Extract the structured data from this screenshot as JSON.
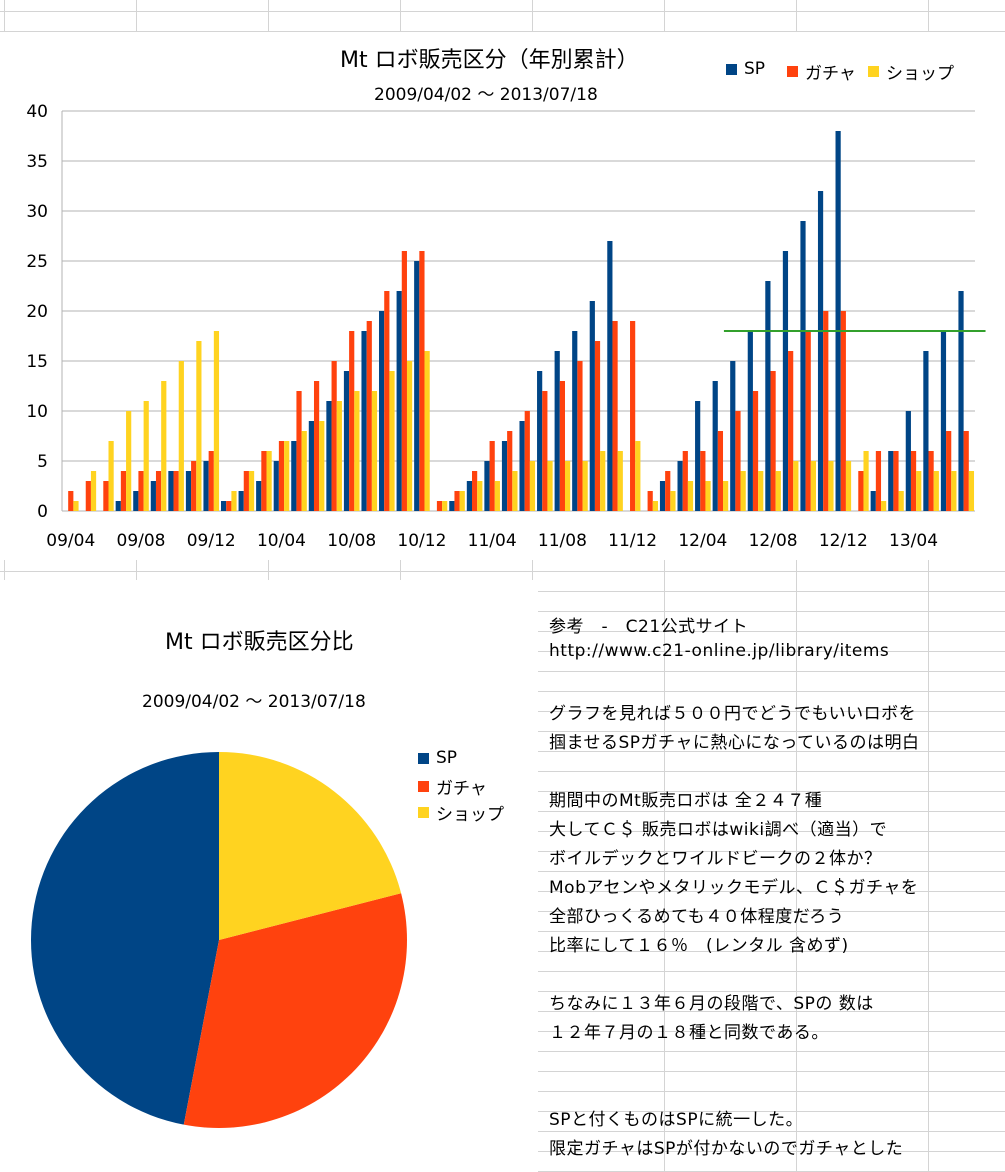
{
  "bar_chart": {
    "title": "Mt ロボ販売区分（年別累計）",
    "subtitle": "2009/04/02 〜 2013/07/18",
    "legend": [
      {
        "label": "SP",
        "color": "#004586"
      },
      {
        "label": "ガチャ",
        "color": "#ff420e"
      },
      {
        "label": "ショップ",
        "color": "#ffd320"
      }
    ]
  },
  "pie_chart": {
    "title": "Mt ロボ販売区分比",
    "subtitle": "2009/04/02 〜 2013/07/18",
    "legend": [
      {
        "label": "SP",
        "color": "#004586"
      },
      {
        "label": "ガチャ",
        "color": "#ff420e"
      },
      {
        "label": "ショップ",
        "color": "#ffd320"
      }
    ]
  },
  "notes": [
    "参考　-　C21公式サイト",
    "http://www.c21-online.jp/library/items",
    "",
    "グラフを見れば５００円でどうでもいいロボを",
    "掴ませるSPガチャに熱心になっているのは明白",
    "",
    "期間中のMt販売ロボは 全２４７種",
    "大してＣ＄ 販売ロボはwiki調べ（適当）で",
    "ボイルデックとワイルドビークの２体か？",
    "Mobアセンやメタリックモデル、Ｃ＄ガチャを",
    "全部ひっくるめても４０体程度だろう",
    "比率にして１６％　(レンタル 含めず)",
    "",
    "ちなみに１３年６月の段階で、SPの 数は",
    "１２年７月の１８種と同数である。",
    "",
    "",
    "SPと付くものはSPに統一した。",
    "限定ガチャはSPが付かないのでガチャとした"
  ],
  "chart_data": [
    {
      "type": "bar",
      "title": "Mt ロボ販売区分（年別累計）",
      "subtitle": "2009/04/02 〜 2013/07/18",
      "xlabel": "",
      "ylabel": "",
      "ylim": [
        0,
        40
      ],
      "yticks": [
        0,
        5,
        10,
        15,
        20,
        25,
        30,
        35,
        40
      ],
      "grid": true,
      "legend_position": "top-right",
      "x_tick_labels": [
        "09/04",
        "09/08",
        "09/12",
        "10/04",
        "10/08",
        "10/12",
        "11/04",
        "11/08",
        "11/12",
        "12/04",
        "12/08",
        "12/12",
        "13/04"
      ],
      "categories": [
        "09/04",
        "09/05",
        "09/06",
        "09/07",
        "09/08",
        "09/09",
        "09/10",
        "09/11",
        "09/12",
        "10/01",
        "10/02",
        "10/03",
        "10/04",
        "10/05",
        "10/06",
        "10/07",
        "10/08",
        "10/09",
        "10/10",
        "10/11",
        "10/12",
        "11/01",
        "11/02",
        "11/03",
        "11/04",
        "11/05",
        "11/06",
        "11/07",
        "11/08",
        "11/09",
        "11/10",
        "11/11",
        "11/12",
        "12/01",
        "12/02",
        "12/03",
        "12/04",
        "12/05",
        "12/06",
        "12/07",
        "12/08",
        "12/09",
        "12/10",
        "12/11",
        "12/12",
        "13/01",
        "13/02",
        "13/03",
        "13/04",
        "13/05",
        "13/06",
        "13/07"
      ],
      "series": [
        {
          "name": "SP",
          "color": "#004586",
          "values": [
            0,
            0,
            0,
            1,
            2,
            3,
            4,
            4,
            5,
            1,
            2,
            3,
            5,
            7,
            9,
            11,
            14,
            18,
            20,
            22,
            25,
            0,
            1,
            3,
            5,
            7,
            9,
            14,
            16,
            18,
            21,
            27,
            0,
            0,
            3,
            5,
            11,
            13,
            15,
            18,
            23,
            26,
            29,
            32,
            38,
            0,
            2,
            6,
            10,
            16,
            18,
            22
          ]
        },
        {
          "name": "ガチャ",
          "color": "#ff420e",
          "values": [
            2,
            3,
            3,
            4,
            4,
            4,
            4,
            5,
            6,
            1,
            4,
            6,
            7,
            12,
            13,
            15,
            18,
            19,
            22,
            26,
            26,
            1,
            2,
            4,
            7,
            8,
            10,
            12,
            13,
            15,
            17,
            19,
            19,
            2,
            4,
            6,
            6,
            8,
            10,
            12,
            14,
            16,
            18,
            20,
            20,
            4,
            6,
            6,
            6,
            6,
            8,
            8
          ]
        },
        {
          "name": "ショップ",
          "color": "#ffd320",
          "values": [
            1,
            4,
            7,
            10,
            11,
            13,
            15,
            17,
            18,
            2,
            4,
            6,
            7,
            8,
            9,
            11,
            12,
            12,
            14,
            15,
            16,
            1,
            2,
            3,
            3,
            4,
            5,
            5,
            5,
            5,
            6,
            6,
            7,
            1,
            2,
            3,
            3,
            3,
            4,
            4,
            4,
            5,
            5,
            5,
            5,
            6,
            1,
            2,
            4,
            4,
            4,
            4
          ]
        }
      ],
      "annotations": [
        {
          "type": "hline",
          "y": 18,
          "x_start": "12/07",
          "x_end": "13/07",
          "color": "#33a02c"
        }
      ]
    },
    {
      "type": "pie",
      "title": "Mt ロボ販売区分比",
      "subtitle": "2009/04/02 〜 2013/07/18",
      "legend_position": "right",
      "categories": [
        "SP",
        "ガチャ",
        "ショップ"
      ],
      "values": [
        47,
        32,
        21
      ],
      "colors": [
        "#004586",
        "#ff420e",
        "#ffd320"
      ]
    }
  ]
}
